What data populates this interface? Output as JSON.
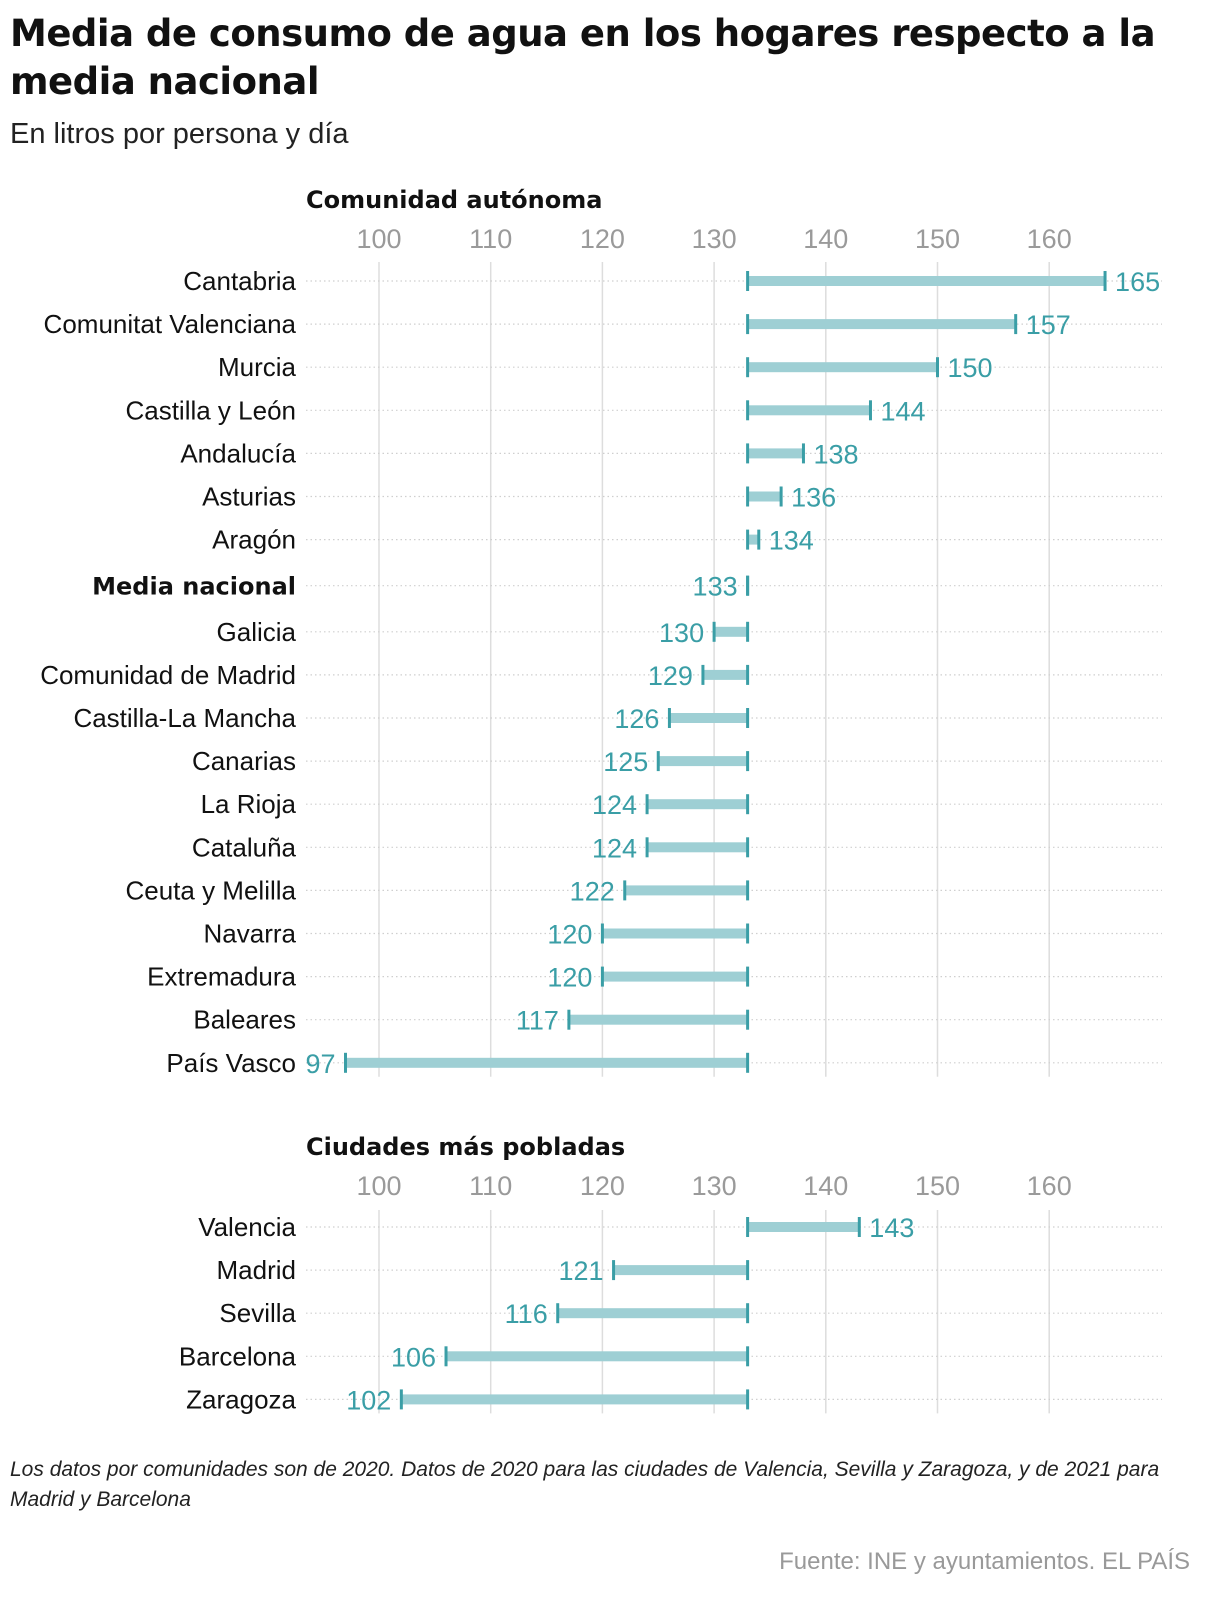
{
  "title": "Media de consumo de agua en los hogares respecto a la media nacional",
  "subtitle": "En litros por persona y día",
  "footnote": "Los datos por comunidades son de 2020. Datos de 2020 para las ciudades de Valencia, Sevilla y Zaragoza, y de 2021 para Madrid y Barcelona",
  "source": "Fuente: INE y ayuntamientos. EL PAÍS",
  "colors": {
    "bar": "#9ecfd4",
    "accent": "#3a9ea6",
    "tick": "#9a9a9a",
    "grid": "#dddddd"
  },
  "chart_data": [
    {
      "type": "bar",
      "title": "Comunidad autónoma",
      "reference": 133,
      "xlim": [
        93,
        168
      ],
      "xticks": [
        100,
        110,
        120,
        130,
        140,
        150,
        160
      ],
      "grid": true,
      "rows": [
        {
          "label": "Cantabria",
          "value": 165
        },
        {
          "label": "Comunitat Valenciana",
          "value": 157
        },
        {
          "label": "Murcia",
          "value": 150
        },
        {
          "label": "Castilla y León",
          "value": 144
        },
        {
          "label": "Andalucía",
          "value": 138
        },
        {
          "label": "Asturias",
          "value": 136
        },
        {
          "label": "Aragón",
          "value": 134
        },
        {
          "label": "Media nacional",
          "value": 133,
          "bold": true
        },
        {
          "label": "Galicia",
          "value": 130
        },
        {
          "label": "Comunidad de Madrid",
          "value": 129
        },
        {
          "label": "Castilla-La Mancha",
          "value": 126
        },
        {
          "label": "Canarias",
          "value": 125
        },
        {
          "label": "La Rioja",
          "value": 124
        },
        {
          "label": "Cataluña",
          "value": 124
        },
        {
          "label": "Ceuta y Melilla",
          "value": 122
        },
        {
          "label": "Navarra",
          "value": 120
        },
        {
          "label": "Extremadura",
          "value": 120
        },
        {
          "label": "Baleares",
          "value": 117
        },
        {
          "label": "País Vasco",
          "value": 97
        }
      ]
    },
    {
      "type": "bar",
      "title": "Ciudades más pobladas",
      "reference": 133,
      "xlim": [
        93,
        168
      ],
      "xticks": [
        100,
        110,
        120,
        130,
        140,
        150,
        160
      ],
      "grid": true,
      "rows": [
        {
          "label": "Valencia",
          "value": 143
        },
        {
          "label": "Madrid",
          "value": 121
        },
        {
          "label": "Sevilla",
          "value": 116
        },
        {
          "label": "Barcelona",
          "value": 106
        },
        {
          "label": "Zaragoza",
          "value": 102
        }
      ]
    }
  ]
}
